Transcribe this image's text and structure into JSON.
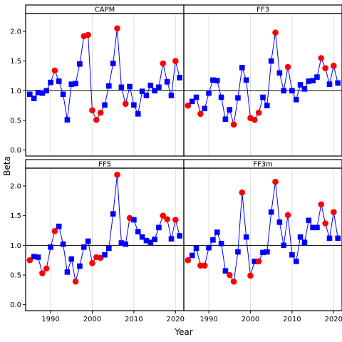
{
  "chart_data": {
    "type": "scatter",
    "layout": "2x2 facet grid, shared axes",
    "xlabel": "Year",
    "ylabel": "Beta",
    "xlim": [
      1984,
      2022
    ],
    "ylim": [
      -0.1,
      2.3
    ],
    "x_ticks": [
      1990,
      2000,
      2010,
      2020
    ],
    "y_ticks": [
      0.0,
      0.5,
      1.0,
      1.5,
      2.0
    ],
    "reference_line_y": 1.0,
    "grid": "vertical lines at x ticks",
    "colors": {
      "line": "#0000ff",
      "square_marker": "#0000ff",
      "circle_marker": "#ff0000",
      "reference_line": "#000000",
      "grid": "#e0e0e0",
      "strip_bg": "#ffffff"
    },
    "years": [
      1985,
      1986,
      1987,
      1988,
      1989,
      1990,
      1991,
      1992,
      1993,
      1994,
      1995,
      1996,
      1997,
      1998,
      1999,
      2000,
      2001,
      2002,
      2003,
      2004,
      2005,
      2006,
      2007,
      2008,
      2009,
      2010,
      2011,
      2012,
      2013,
      2014,
      2015,
      2016,
      2017,
      2018,
      2019,
      2020,
      2021
    ],
    "panels": [
      {
        "title": "CAPM",
        "values": [
          0.94,
          0.87,
          0.97,
          0.96,
          1.0,
          1.14,
          1.34,
          1.16,
          0.94,
          0.51,
          1.11,
          1.12,
          1.45,
          1.92,
          1.94,
          0.67,
          0.51,
          0.63,
          0.76,
          1.08,
          1.46,
          2.05,
          1.06,
          0.78,
          1.07,
          0.76,
          0.61,
          0.99,
          0.92,
          1.09,
          1.0,
          1.06,
          1.46,
          1.15,
          0.92,
          1.5,
          1.22
        ],
        "circle_flags": [
          0,
          0,
          0,
          0,
          0,
          0,
          1,
          0,
          0,
          0,
          0,
          0,
          0,
          1,
          1,
          1,
          1,
          1,
          0,
          0,
          0,
          1,
          0,
          1,
          0,
          0,
          0,
          0,
          0,
          0,
          0,
          0,
          1,
          0,
          0,
          1,
          0
        ]
      },
      {
        "title": "FF3",
        "values": [
          0.75,
          0.82,
          0.89,
          0.61,
          0.7,
          0.96,
          1.18,
          1.17,
          0.89,
          0.52,
          0.68,
          0.43,
          0.88,
          1.39,
          1.18,
          0.54,
          0.51,
          0.63,
          0.89,
          0.75,
          1.5,
          1.98,
          1.3,
          1.0,
          1.4,
          1.0,
          0.85,
          1.1,
          1.03,
          1.16,
          1.17,
          1.23,
          1.55,
          1.38,
          1.11,
          1.42,
          1.13
        ],
        "circle_flags": [
          1,
          0,
          0,
          1,
          0,
          0,
          0,
          0,
          0,
          0,
          0,
          1,
          0,
          0,
          0,
          1,
          1,
          1,
          0,
          0,
          0,
          1,
          0,
          0,
          1,
          0,
          0,
          0,
          0,
          0,
          0,
          0,
          1,
          1,
          0,
          1,
          0
        ]
      },
      {
        "title": "FF5",
        "values": [
          0.75,
          0.81,
          0.8,
          0.53,
          0.61,
          0.97,
          1.24,
          1.32,
          1.02,
          0.55,
          0.77,
          0.39,
          0.65,
          0.97,
          1.07,
          0.7,
          0.8,
          0.79,
          0.84,
          0.95,
          1.53,
          2.19,
          1.04,
          1.02,
          1.46,
          1.43,
          1.23,
          1.14,
          1.08,
          1.05,
          1.1,
          1.3,
          1.5,
          1.44,
          1.11,
          1.43,
          1.16
        ],
        "circle_flags": [
          1,
          0,
          0,
          1,
          1,
          0,
          1,
          0,
          0,
          0,
          0,
          1,
          0,
          0,
          0,
          1,
          1,
          1,
          0,
          0,
          0,
          1,
          0,
          0,
          1,
          0,
          0,
          0,
          0,
          0,
          0,
          0,
          1,
          1,
          0,
          1,
          0
        ]
      },
      {
        "title": "FF3m",
        "values": [
          0.75,
          0.83,
          0.95,
          0.66,
          0.66,
          0.96,
          1.09,
          1.22,
          1.03,
          0.57,
          0.5,
          0.39,
          0.89,
          1.89,
          1.14,
          0.49,
          0.73,
          0.73,
          0.88,
          0.89,
          1.56,
          2.07,
          1.39,
          1.0,
          1.51,
          0.84,
          0.73,
          1.14,
          1.05,
          1.42,
          1.3,
          1.3,
          1.69,
          1.37,
          1.12,
          1.56,
          1.12
        ],
        "circle_flags": [
          1,
          0,
          0,
          1,
          1,
          0,
          0,
          0,
          0,
          0,
          1,
          1,
          0,
          1,
          0,
          1,
          0,
          1,
          0,
          0,
          0,
          1,
          0,
          0,
          1,
          0,
          0,
          0,
          0,
          0,
          0,
          0,
          1,
          1,
          0,
          1,
          0
        ]
      }
    ]
  }
}
